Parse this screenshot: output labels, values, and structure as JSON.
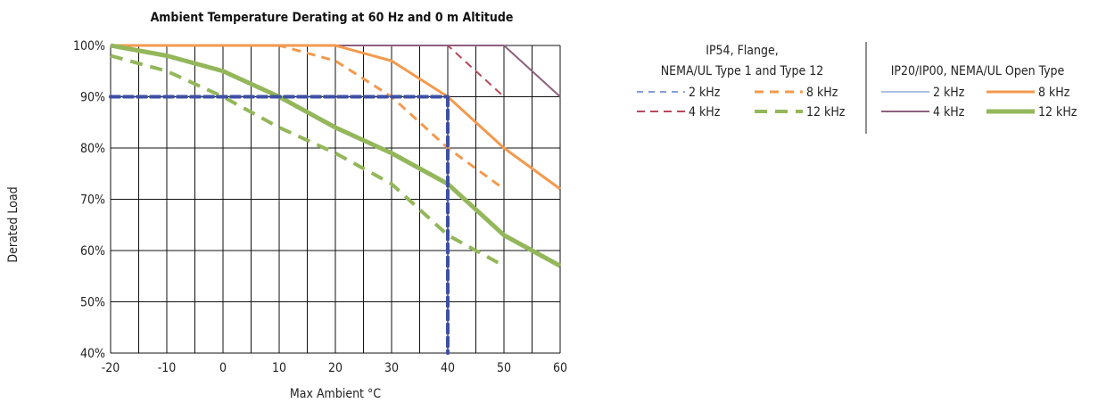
{
  "chart_data": {
    "type": "line",
    "title": "Ambient Temperature Derating at 60 Hz and 0 m Altitude",
    "xlabel": "Max Ambient °C",
    "ylabel": "Derated Load",
    "xlim": [
      -20,
      60
    ],
    "ylim": [
      40,
      100
    ],
    "x_ticks": [
      "-20",
      "-10",
      "0",
      "10",
      "20",
      "30",
      "40",
      "50",
      "60"
    ],
    "y_ticks": [
      "40%",
      "50%",
      "60%",
      "70%",
      "80%",
      "90%",
      "100%"
    ],
    "grid": true,
    "series": [
      {
        "name": "2 kHz",
        "group": "ip54",
        "color": "#5b7fc7",
        "dashed": true,
        "width": 1.5,
        "x": [
          -20,
          50
        ],
        "y": [
          100,
          100
        ]
      },
      {
        "name": "4 kHz",
        "group": "ip54",
        "color": "#b5495b",
        "dashed": true,
        "width": 2,
        "x": [
          -20,
          40,
          50
        ],
        "y": [
          100,
          100,
          90
        ]
      },
      {
        "name": "8 kHz",
        "group": "ip54",
        "color": "#f39a4d",
        "dashed": true,
        "width": 3,
        "x": [
          -20,
          10,
          20,
          30,
          40,
          50
        ],
        "y": [
          100,
          100,
          97,
          90,
          80,
          72
        ]
      },
      {
        "name": "12 kHz",
        "group": "ip54",
        "color": "#93b75a",
        "dashed": true,
        "width": 4,
        "x": [
          -20,
          -10,
          0,
          10,
          20,
          30,
          40,
          50
        ],
        "y": [
          98,
          95,
          90,
          84,
          79,
          73,
          63,
          57
        ]
      },
      {
        "name": "2 kHz",
        "group": "ip20",
        "color": "#5b7fc7",
        "dashed": false,
        "width": 1,
        "x": [
          -20,
          50,
          60
        ],
        "y": [
          100,
          100,
          90
        ]
      },
      {
        "name": "4 kHz",
        "group": "ip20",
        "color": "#8e5f7e",
        "dashed": false,
        "width": 2,
        "x": [
          -20,
          50,
          60
        ],
        "y": [
          100,
          100,
          90
        ]
      },
      {
        "name": "8 kHz",
        "group": "ip20",
        "color": "#f39a4d",
        "dashed": false,
        "width": 3,
        "x": [
          -20,
          20,
          30,
          40,
          50,
          60
        ],
        "y": [
          100,
          100,
          97,
          90,
          80,
          72
        ]
      },
      {
        "name": "12 kHz",
        "group": "ip20",
        "color": "#93b75a",
        "dashed": false,
        "width": 5,
        "x": [
          -20,
          -10,
          0,
          10,
          20,
          30,
          40,
          50,
          60
        ],
        "y": [
          100,
          98,
          95,
          90,
          84,
          79,
          73,
          63,
          57
        ]
      }
    ],
    "reference_lines": [
      {
        "color": "#3d50a4",
        "x": [
          -20,
          40
        ],
        "y": [
          90,
          90
        ]
      },
      {
        "color": "#3d50a4",
        "x": [
          40,
          40
        ],
        "y": [
          90,
          40
        ]
      }
    ],
    "legend": {
      "placement": "right",
      "groups": [
        {
          "id": "ip54",
          "heading": [
            "IP54, Flange,",
            "NEMA/UL Type 1 and Type 12"
          ]
        },
        {
          "id": "ip20",
          "heading": [
            "IP20/IP00, NEMA/UL Open Type"
          ]
        }
      ]
    }
  }
}
